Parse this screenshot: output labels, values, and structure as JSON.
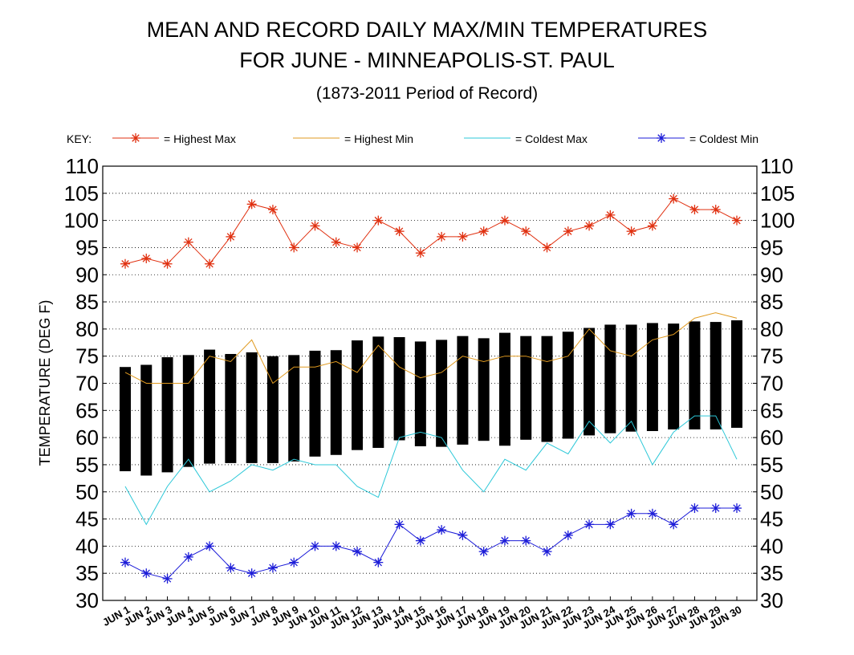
{
  "chart_data": {
    "type": "bar",
    "title_lines": [
      "MEAN AND RECORD DAILY MAX/MIN TEMPERATURES",
      "FOR JUNE - MINNEAPOLIS-ST. PAUL"
    ],
    "subtitle": "(1873-2011 Period of Record)",
    "ylabel": "TEMPERATURE (DEG F)",
    "ylim": [
      30,
      110
    ],
    "yticks": [
      30,
      35,
      40,
      45,
      50,
      55,
      60,
      65,
      70,
      75,
      80,
      85,
      90,
      95,
      100,
      105,
      110
    ],
    "grid": "horizontal dotted",
    "legend": {
      "prefix": "KEY:",
      "placement": "top",
      "entries": [
        {
          "label": "= Highest Max",
          "color": "#e03010",
          "marker": "asterisk"
        },
        {
          "label": "= Highest Min",
          "color": "#e09a20",
          "marker": "none"
        },
        {
          "label": "= Coldest Max",
          "color": "#2cc8d8",
          "marker": "none"
        },
        {
          "label": "= Coldest Min",
          "color": "#1c1cd8",
          "marker": "asterisk"
        }
      ]
    },
    "categories": [
      "JUN  1",
      "JUN  2",
      "JUN  3",
      "JUN  4",
      "JUN  5",
      "JUN  6",
      "JUN  7",
      "JUN  8",
      "JUN  9",
      "JUN 10",
      "JUN 11",
      "JUN 12",
      "JUN 13",
      "JUN 14",
      "JUN 15",
      "JUN 16",
      "JUN 17",
      "JUN 18",
      "JUN 19",
      "JUN 20",
      "JUN 21",
      "JUN 22",
      "JUN 23",
      "JUN 24",
      "JUN 25",
      "JUN 26",
      "JUN 27",
      "JUN 28",
      "JUN 29",
      "JUN 30"
    ],
    "mean_range": {
      "color": "#000000",
      "max": [
        73,
        73.4,
        74.8,
        75.2,
        76.2,
        75.4,
        75.7,
        75,
        75.2,
        76,
        76.1,
        77.9,
        78.6,
        78.5,
        77.7,
        78,
        78.7,
        78.3,
        79.3,
        78.7,
        78.7,
        79.5,
        80.2,
        80.8,
        80.8,
        81.1,
        81,
        81.4,
        81.3,
        81.6
      ],
      "min": [
        53.8,
        53,
        53.6,
        54.6,
        55.2,
        55.3,
        55.3,
        55.3,
        55.6,
        56.5,
        56.8,
        57.7,
        58.1,
        59.5,
        58.4,
        58.3,
        58.7,
        59.4,
        58.5,
        59.6,
        59.2,
        59.8,
        60.4,
        60.8,
        61.1,
        61.2,
        61.5,
        61.5,
        61.5,
        61.8
      ]
    },
    "series": [
      {
        "name": "Highest Max",
        "color": "#e03010",
        "values": [
          92,
          93,
          92,
          96,
          92,
          97,
          103,
          102,
          95,
          99,
          96,
          95,
          100,
          98,
          94,
          97,
          97,
          98,
          100,
          98,
          95,
          98,
          99,
          101,
          98,
          99,
          104,
          102,
          102,
          100
        ]
      },
      {
        "name": "Highest Min",
        "color": "#e09a20",
        "values": [
          72,
          70,
          70,
          70,
          75,
          74,
          78,
          70,
          73,
          73,
          74,
          72,
          77,
          73,
          71,
          72,
          75,
          74,
          75,
          75,
          74,
          75,
          80,
          76,
          75,
          78,
          79,
          82,
          83,
          82
        ]
      },
      {
        "name": "Coldest Max",
        "color": "#2cc8d8",
        "values": [
          51,
          44,
          51,
          56,
          50,
          52,
          55,
          54,
          56,
          55,
          55,
          51,
          49,
          60,
          61,
          60,
          54,
          50,
          56,
          54,
          59,
          57,
          63,
          59,
          63,
          55,
          61,
          64,
          64,
          56
        ]
      },
      {
        "name": "Coldest Min",
        "color": "#1c1cd8",
        "values": [
          37,
          35,
          34,
          38,
          40,
          36,
          35,
          36,
          37,
          40,
          40,
          39,
          37,
          44,
          41,
          43,
          42,
          39,
          41,
          41,
          39,
          42,
          44,
          44,
          46,
          46,
          44,
          47,
          47,
          47
        ]
      }
    ]
  }
}
